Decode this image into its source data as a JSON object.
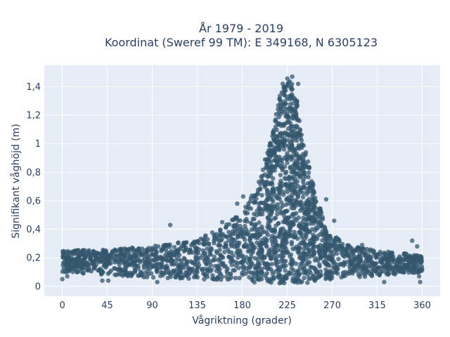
{
  "chart_data": {
    "type": "scatter",
    "title": "År 1979 - 2019",
    "subtitle": "Koordinat (Sweref 99 TM): E 349168, N 6305123",
    "xlabel": "Vågriktning (grader)",
    "ylabel": "Signifikant våghöjd (m)",
    "xlim": [
      -18,
      378
    ],
    "ylim": [
      -0.07,
      1.55
    ],
    "xticks": [
      0,
      45,
      90,
      135,
      180,
      225,
      270,
      315,
      360
    ],
    "xtick_labels": [
      "0",
      "45",
      "90",
      "135",
      "180",
      "225",
      "270",
      "315",
      "360"
    ],
    "yticks": [
      0,
      0.2,
      0.4,
      0.6,
      0.8,
      1.0,
      1.2,
      1.4
    ],
    "ytick_labels": [
      "0",
      "0,2",
      "0,4",
      "0,6",
      "0,8",
      "1",
      "1,2",
      "1,4"
    ],
    "grid": true,
    "marker_color": "#34576e",
    "background_color": "#e5ecf6",
    "envelope": {
      "x": [
        0,
        45,
        90,
        135,
        160,
        180,
        195,
        205,
        215,
        220,
        225,
        230,
        235,
        240,
        250,
        260,
        270,
        290,
        315,
        360
      ],
      "upper": [
        0.25,
        0.26,
        0.28,
        0.33,
        0.42,
        0.52,
        0.7,
        0.95,
        1.25,
        1.42,
        1.48,
        1.45,
        1.3,
        1.05,
        0.75,
        0.5,
        0.36,
        0.28,
        0.25,
        0.22
      ],
      "lower": [
        0.1,
        0.08,
        0.06,
        0.05,
        0.04,
        0.03,
        0.02,
        0.02,
        0.02,
        0.02,
        0.02,
        0.02,
        0.02,
        0.02,
        0.03,
        0.04,
        0.05,
        0.06,
        0.07,
        0.1
      ]
    },
    "sample_points": [
      {
        "x": 0,
        "y": 0.05
      },
      {
        "x": 5,
        "y": 0.07
      },
      {
        "x": 108,
        "y": 0.43
      },
      {
        "x": 160,
        "y": 0.45
      },
      {
        "x": 175,
        "y": 0.58
      },
      {
        "x": 181,
        "y": 0.63
      },
      {
        "x": 230,
        "y": 1.47
      },
      {
        "x": 236,
        "y": 1.42
      },
      {
        "x": 253,
        "y": 0.62
      },
      {
        "x": 264,
        "y": 0.61
      },
      {
        "x": 272,
        "y": 0.46
      },
      {
        "x": 300,
        "y": 0.29
      },
      {
        "x": 305,
        "y": 0.26
      },
      {
        "x": 350,
        "y": 0.32
      },
      {
        "x": 355,
        "y": 0.28
      },
      {
        "x": 357,
        "y": 0.07
      },
      {
        "x": 322,
        "y": 0.03
      },
      {
        "x": 358,
        "y": 0.03
      },
      {
        "x": 40,
        "y": 0.04
      },
      {
        "x": 46,
        "y": 0.04
      },
      {
        "x": 95,
        "y": 0.03
      }
    ]
  }
}
